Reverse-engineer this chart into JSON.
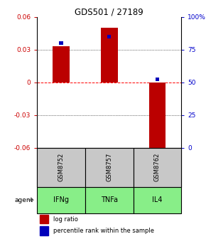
{
  "title": "GDS501 / 27189",
  "samples": [
    "GSM8752",
    "GSM8757",
    "GSM8762"
  ],
  "agents": [
    "IFNg",
    "TNFa",
    "IL4"
  ],
  "log_ratios": [
    0.033,
    0.05,
    -0.063
  ],
  "percentile_ranks": [
    0.8,
    0.85,
    0.52
  ],
  "ylim_left": [
    -0.06,
    0.06
  ],
  "yticks_left": [
    -0.06,
    -0.03,
    0.0,
    0.03,
    0.06
  ],
  "ytick_labels_left": [
    "-0.06",
    "-0.03",
    "0",
    "0.03",
    "0.06"
  ],
  "yticks_right": [
    0.0,
    0.25,
    0.5,
    0.75,
    1.0
  ],
  "ytick_labels_right": [
    "0",
    "25",
    "50",
    "75",
    "100%"
  ],
  "bar_color": "#bb0000",
  "percentile_color": "#0000bb",
  "gray_box_color": "#c8c8c8",
  "green_box_color": "#88ee88",
  "agent_label": "agent",
  "legend_log": "log ratio",
  "legend_pct": "percentile rank within the sample",
  "bar_width": 0.35
}
